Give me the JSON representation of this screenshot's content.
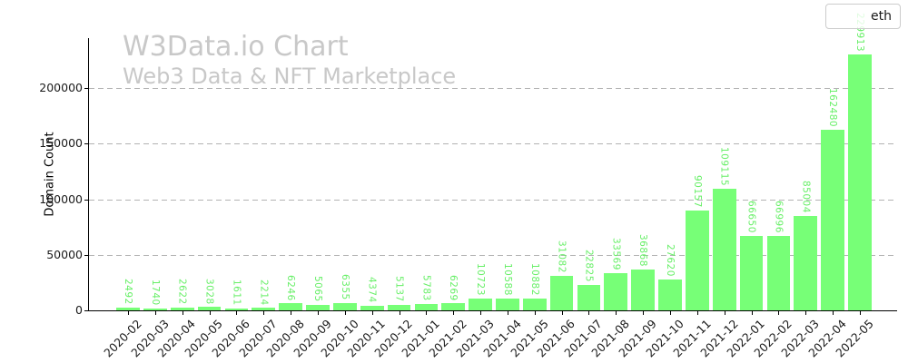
{
  "watermark": {
    "line1": "W3Data.io Chart",
    "line2": "Web3 Data & NFT Marketplace"
  },
  "legend": {
    "label": "eth"
  },
  "colors": {
    "bar": "#77ff77",
    "value_label": "#67ef67",
    "grid": "#b3b3b3",
    "axis": "#000000",
    "watermark": "#c8c8c8",
    "tick_label": "#1a1a1a"
  },
  "chart_data": {
    "type": "bar",
    "title": "W3Data.io Chart",
    "subtitle": "Web3 Data & NFT Marketplace",
    "xlabel": "",
    "ylabel": "Domain Count",
    "categories": [
      "2020-02",
      "2020-03",
      "2020-04",
      "2020-05",
      "2020-06",
      "2020-07",
      "2020-08",
      "2020-09",
      "2020-10",
      "2020-11",
      "2020-12",
      "2021-01",
      "2021-02",
      "2021-03",
      "2021-04",
      "2021-05",
      "2021-06",
      "2021-07",
      "2021-08",
      "2021-09",
      "2021-10",
      "2021-11",
      "2021-12",
      "2022-01",
      "2022-02",
      "2022-03",
      "2022-04",
      "2022-05"
    ],
    "series": [
      {
        "name": "eth",
        "color": "#77ff77",
        "values": [
          2492,
          1740,
          2622,
          3028,
          1611,
          2214,
          6246,
          5065,
          6355,
          4374,
          5137,
          5783,
          6269,
          10723,
          10588,
          10882,
          31082,
          22825,
          33569,
          36868,
          27620,
          90157,
          109115,
          66650,
          66996,
          85004,
          162480,
          229913
        ]
      }
    ],
    "ylim": [
      0,
      245000
    ],
    "yticks": [
      0,
      50000,
      100000,
      150000,
      200000
    ],
    "grid": "horizontal-dashed",
    "legend_position": "upper-right",
    "bar_value_labels": "rotated-90-above-bars"
  }
}
